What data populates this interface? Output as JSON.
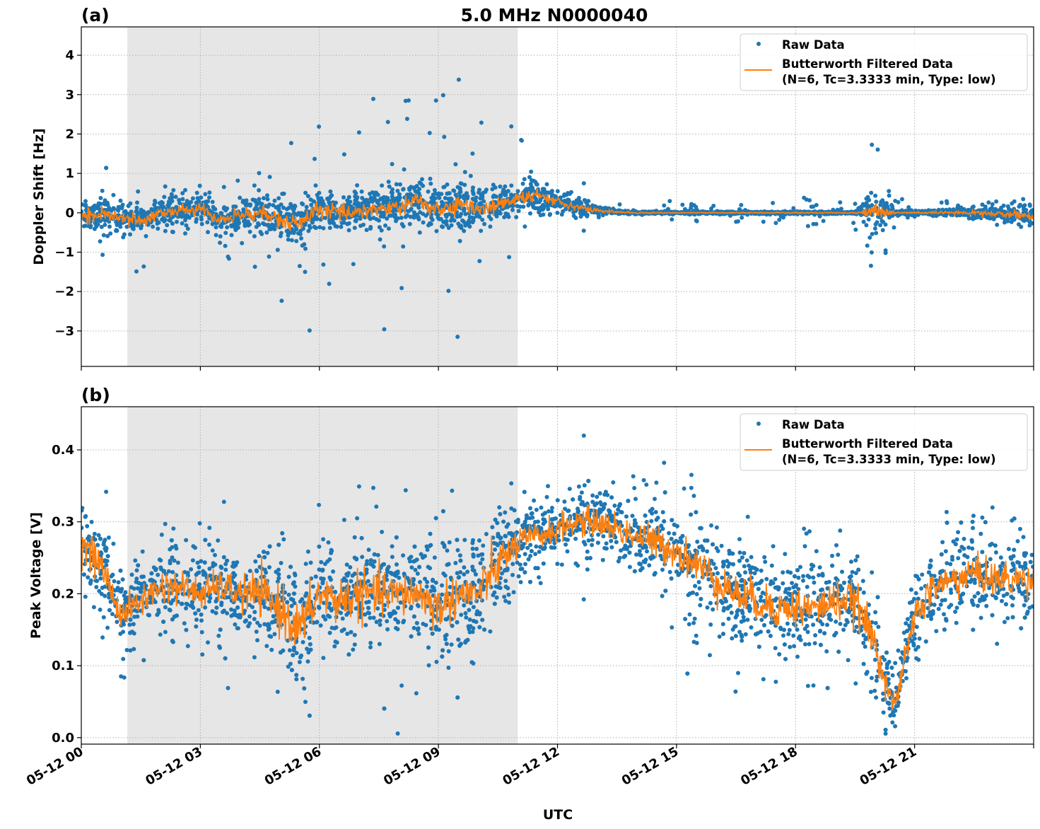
{
  "title": "5.0 MHz N0000040",
  "xlabel": "UTC",
  "x_tick_labels": [
    "05-12 00",
    "05-12 03",
    "05-12 06",
    "05-12 09",
    "05-12 12",
    "05-12 15",
    "05-12 18",
    "05-12 21"
  ],
  "colors": {
    "raw": "#1f77b4",
    "filtered": "#ff7f0e",
    "shade": "#e6e6e6",
    "grid": "#b0b0b0"
  },
  "chart_data": [
    {
      "type": "scatter+line",
      "panel_label": "(a)",
      "ylabel": "Doppler Shift [Hz]",
      "xlim_hours": [
        0,
        24
      ],
      "ylim": [
        -3.9,
        4.72
      ],
      "yticks": [
        -3,
        -2,
        -1,
        0,
        1,
        2,
        3,
        4
      ],
      "ytick_labels": [
        "−3",
        "−2",
        "−1",
        "0",
        "1",
        "2",
        "3",
        "4"
      ],
      "grid": true,
      "shaded_interval_hours": [
        1.16,
        11.0
      ],
      "legend": {
        "placement": "top-right",
        "entries": [
          "Raw Data",
          "Butterworth Filtered Data",
          "(N=6, Tc=3.3333 min, Type: low)"
        ]
      },
      "t_hours": [
        0,
        0.5,
        1,
        1.5,
        2,
        2.5,
        3,
        3.5,
        4,
        4.5,
        5,
        5.5,
        6,
        6.5,
        7,
        7.5,
        8,
        8.5,
        9,
        9.5,
        10,
        10.5,
        11,
        11.5,
        12,
        12.5,
        13,
        13.5,
        14,
        14.5,
        15,
        15.5,
        16,
        16.5,
        17,
        17.5,
        18,
        18.5,
        19,
        19.5,
        20,
        20.5,
        21,
        21.5,
        22,
        22.5,
        23,
        23.5,
        24
      ],
      "filtered": [
        -0.1,
        -0.05,
        -0.15,
        -0.2,
        0.0,
        0.05,
        0.1,
        -0.2,
        -0.05,
        0.0,
        -0.2,
        -0.3,
        0.1,
        0.0,
        0.05,
        0.1,
        0.15,
        0.3,
        0.05,
        0.2,
        0.1,
        0.2,
        0.35,
        0.45,
        0.3,
        0.15,
        0.05,
        0.02,
        0.0,
        0.0,
        0.0,
        0.0,
        0.0,
        0.0,
        0.0,
        0.0,
        0.0,
        0.0,
        0.0,
        0.0,
        0.05,
        0.0,
        0.0,
        0.0,
        0.0,
        0.0,
        -0.02,
        -0.05,
        -0.08
      ],
      "raw_spread": [
        0.3,
        0.4,
        0.3,
        0.3,
        0.3,
        0.3,
        0.3,
        0.3,
        0.35,
        0.4,
        0.45,
        0.45,
        0.4,
        0.4,
        0.4,
        0.4,
        0.45,
        0.5,
        0.45,
        0.45,
        0.4,
        0.4,
        0.3,
        0.3,
        0.25,
        0.2,
        0.1,
        0.05,
        0.03,
        0.03,
        0.03,
        0.03,
        0.03,
        0.03,
        0.03,
        0.03,
        0.03,
        0.03,
        0.03,
        0.03,
        0.5,
        0.04,
        0.05,
        0.06,
        0.08,
        0.1,
        0.12,
        0.18,
        0.2
      ],
      "raw_outlier": [
        0.8,
        1.6,
        0.8,
        1.5,
        0.8,
        0.6,
        0.6,
        0.8,
        1.5,
        1.8,
        2.2,
        3.5,
        2.5,
        2.0,
        2.0,
        3.2,
        3.0,
        4.0,
        3.3,
        3.5,
        2.7,
        2.5,
        2.0,
        1.1,
        1.0,
        0.8,
        0.4,
        0.2,
        0.2,
        0.3,
        0.3,
        0.3,
        0.2,
        0.3,
        0.3,
        0.3,
        0.5,
        0.3,
        0.3,
        0.4,
        2.2,
        0.4,
        0.3,
        0.3,
        0.3,
        0.3,
        0.3,
        0.4,
        0.5
      ]
    },
    {
      "type": "scatter+line",
      "panel_label": "(b)",
      "ylabel": "Peak Voltage [V]",
      "xlim_hours": [
        0,
        24
      ],
      "ylim": [
        -0.009,
        0.46
      ],
      "yticks": [
        0.0,
        0.1,
        0.2,
        0.3,
        0.4
      ],
      "ytick_labels": [
        "0.0",
        "0.1",
        "0.2",
        "0.3",
        "0.4"
      ],
      "grid": true,
      "shaded_interval_hours": [
        1.16,
        11.0
      ],
      "legend": {
        "placement": "top-right",
        "entries": [
          "Raw Data",
          "Butterworth Filtered Data",
          "(N=6, Tc=3.3333 min, Type: low)"
        ]
      },
      "t_hours": [
        0,
        0.5,
        1,
        1.5,
        2,
        2.5,
        3,
        3.5,
        4,
        4.5,
        5,
        5.5,
        6,
        6.5,
        7,
        7.5,
        8,
        8.5,
        9,
        9.5,
        10,
        10.5,
        11,
        11.5,
        12,
        12.5,
        13,
        13.5,
        14,
        14.5,
        15,
        15.5,
        16,
        16.5,
        17,
        17.5,
        18,
        18.5,
        19,
        19.5,
        20,
        20.5,
        21,
        21.5,
        22,
        22.5,
        23,
        23.5,
        24
      ],
      "filtered": [
        0.27,
        0.24,
        0.17,
        0.19,
        0.21,
        0.21,
        0.2,
        0.21,
        0.2,
        0.2,
        0.18,
        0.15,
        0.2,
        0.19,
        0.2,
        0.2,
        0.2,
        0.2,
        0.18,
        0.2,
        0.2,
        0.24,
        0.27,
        0.28,
        0.29,
        0.3,
        0.3,
        0.29,
        0.28,
        0.27,
        0.26,
        0.24,
        0.22,
        0.2,
        0.19,
        0.18,
        0.18,
        0.18,
        0.19,
        0.19,
        0.13,
        0.04,
        0.17,
        0.21,
        0.22,
        0.23,
        0.22,
        0.22,
        0.22
      ],
      "raw_spread": [
        0.05,
        0.05,
        0.04,
        0.045,
        0.045,
        0.045,
        0.045,
        0.045,
        0.055,
        0.06,
        0.07,
        0.07,
        0.065,
        0.065,
        0.065,
        0.06,
        0.06,
        0.06,
        0.065,
        0.06,
        0.06,
        0.06,
        0.045,
        0.04,
        0.04,
        0.04,
        0.04,
        0.045,
        0.045,
        0.05,
        0.05,
        0.055,
        0.055,
        0.055,
        0.055,
        0.055,
        0.055,
        0.055,
        0.055,
        0.055,
        0.06,
        0.03,
        0.05,
        0.05,
        0.05,
        0.05,
        0.05,
        0.05,
        0.05
      ],
      "raw_outlier": [
        0.1,
        0.15,
        0.1,
        0.1,
        0.1,
        0.1,
        0.1,
        0.12,
        0.2,
        0.15,
        0.15,
        0.15,
        0.15,
        0.15,
        0.15,
        0.15,
        0.2,
        0.15,
        0.15,
        0.15,
        0.15,
        0.12,
        0.1,
        0.1,
        0.1,
        0.12,
        0.14,
        0.2,
        0.15,
        0.18,
        0.2,
        0.15,
        0.15,
        0.15,
        0.15,
        0.12,
        0.12,
        0.12,
        0.12,
        0.12,
        0.1,
        0.08,
        0.1,
        0.1,
        0.1,
        0.12,
        0.1,
        0.1,
        0.1
      ]
    }
  ]
}
